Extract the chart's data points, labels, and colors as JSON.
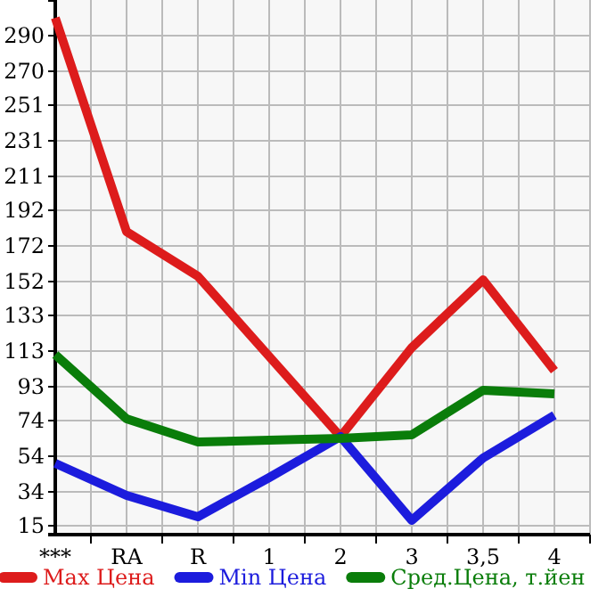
{
  "chart_data": {
    "type": "line",
    "categories": [
      "***",
      "RA",
      "R",
      "1",
      "2",
      "3",
      "3,5",
      "4"
    ],
    "series": [
      {
        "name": "Max Цена",
        "color": "#dd1c1c",
        "values": [
          300,
          180,
          155,
          110,
          65,
          115,
          153,
          102
        ]
      },
      {
        "name": "Min Цена",
        "color": "#1c1cdd",
        "values": [
          50,
          32,
          20,
          42,
          65,
          18,
          53,
          77
        ]
      },
      {
        "name": "Сред.Цена, т.йен",
        "color": "#0a7d0a",
        "values": [
          111,
          75,
          62,
          63,
          64,
          66,
          91,
          89
        ]
      }
    ],
    "ylim": [
      10,
      310
    ],
    "yticks": [
      15,
      34,
      54,
      74,
      93,
      113,
      133,
      152,
      172,
      192,
      211,
      231,
      251,
      270,
      290
    ],
    "grid": true,
    "legend": "bottom",
    "marker": "none",
    "line_style": "solid"
  }
}
